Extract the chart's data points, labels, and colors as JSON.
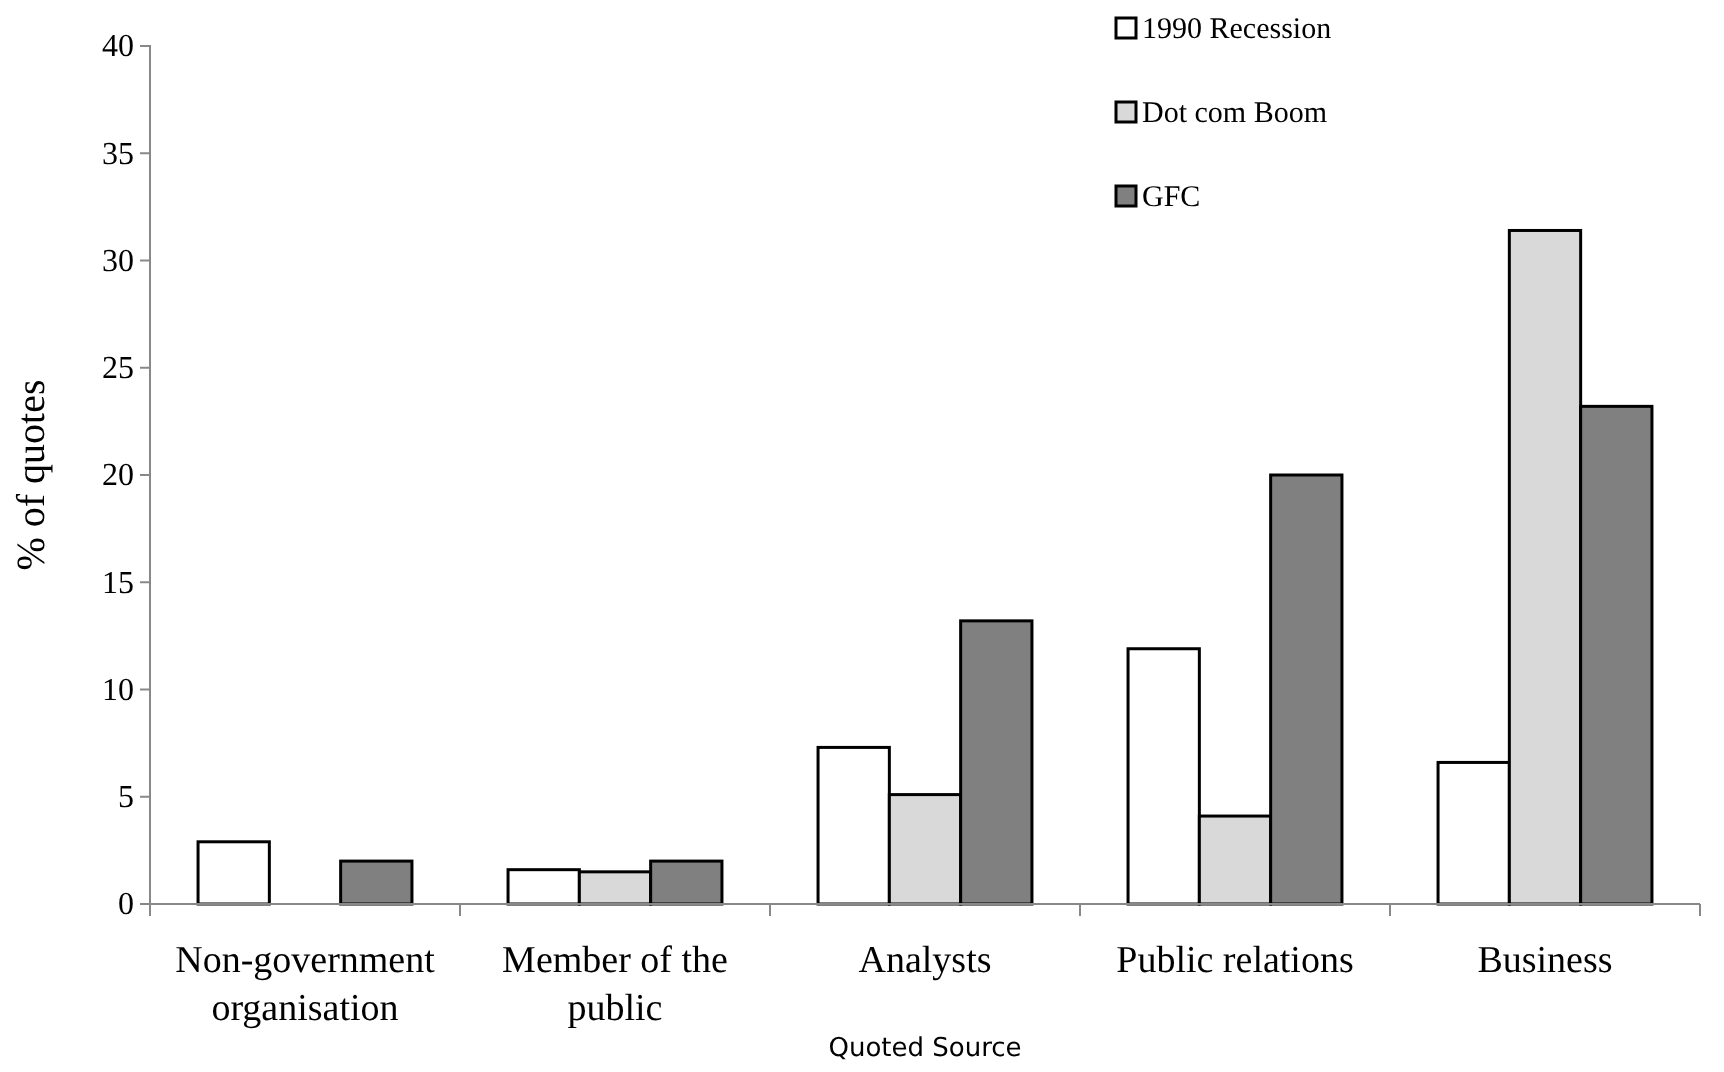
{
  "chart_data": {
    "type": "bar",
    "xlabel": "Quoted Source",
    "ylabel": "% of quotes",
    "categories": [
      "Non-government organisation",
      "Member of the public",
      "Analysts",
      "Public relations",
      "Business"
    ],
    "series": [
      {
        "name": "1990 Recession",
        "color": "#ffffff",
        "values": [
          2.9,
          1.6,
          7.3,
          11.9,
          6.6
        ]
      },
      {
        "name": "Dot com Boom",
        "color": "#d9d9d9",
        "values": [
          0,
          1.5,
          5.1,
          4.1,
          31.4
        ]
      },
      {
        "name": "GFC",
        "color": "#808080",
        "values": [
          2,
          2,
          13.2,
          20,
          23.2
        ]
      }
    ],
    "ylim": [
      0,
      40
    ],
    "yticks": [
      0,
      5,
      10,
      15,
      20,
      25,
      30,
      35,
      40
    ],
    "grid": false,
    "legend": "top right"
  }
}
